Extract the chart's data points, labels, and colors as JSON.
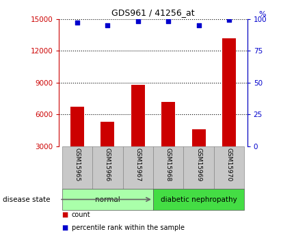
{
  "title": "GDS961 / 41256_at",
  "samples": [
    "GSM15965",
    "GSM15966",
    "GSM15967",
    "GSM15968",
    "GSM15969",
    "GSM15970"
  ],
  "counts": [
    6700,
    5300,
    8800,
    7200,
    4600,
    13200
  ],
  "percentile_ranks": [
    97,
    95,
    98,
    98,
    95,
    99
  ],
  "ylim_left": [
    3000,
    15000
  ],
  "yticks_left": [
    3000,
    6000,
    9000,
    12000,
    15000
  ],
  "ylim_right": [
    0,
    100
  ],
  "yticks_right": [
    0,
    25,
    50,
    75,
    100
  ],
  "bar_color": "#cc0000",
  "dot_color": "#0000cc",
  "bar_width": 0.45,
  "groups": [
    {
      "label": "normal",
      "indices": [
        0,
        1,
        2
      ],
      "color": "#aaffaa"
    },
    {
      "label": "diabetic nephropathy",
      "indices": [
        3,
        4,
        5
      ],
      "color": "#44dd44"
    }
  ],
  "disease_state_label": "disease state",
  "legend_items": [
    {
      "label": "count",
      "color": "#cc0000"
    },
    {
      "label": "percentile rank within the sample",
      "color": "#0000cc"
    }
  ],
  "tick_color_left": "#cc0000",
  "tick_color_right": "#0000cc",
  "bg_color": "#ffffff",
  "sample_box_color": "#c8c8c8",
  "figsize": [
    4.11,
    3.45
  ],
  "dpi": 100
}
